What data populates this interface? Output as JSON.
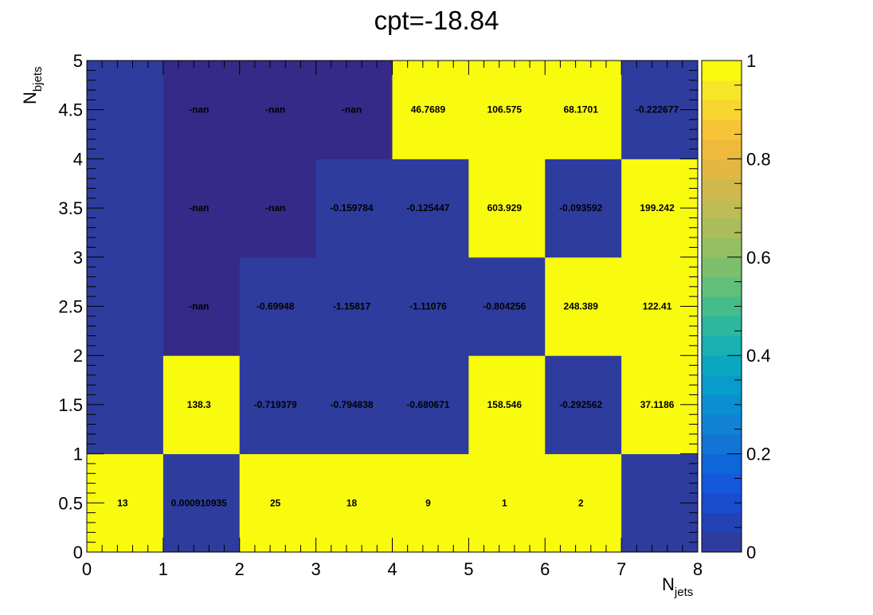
{
  "chart_data": {
    "type": "heatmap",
    "title": "cpt=-18.84",
    "xlabel_main": "N",
    "xlabel_sub": "jets",
    "ylabel_main": "N",
    "ylabel_sub": "bjets",
    "xlim": [
      0,
      8
    ],
    "ylim": [
      0,
      5
    ],
    "x_ticks": [
      "0",
      "1",
      "2",
      "3",
      "4",
      "5",
      "6",
      "7",
      "8"
    ],
    "y_ticks": [
      "0",
      "0.5",
      "1",
      "1.5",
      "2",
      "2.5",
      "3",
      "3.5",
      "4",
      "4.5",
      "5"
    ],
    "z_range": [
      0,
      1
    ],
    "colorbar_ticks": [
      "0",
      "0.2",
      "0.4",
      "0.6",
      "0.8",
      "1"
    ],
    "x_bins": [
      0,
      1,
      2,
      3,
      4,
      5,
      6,
      7,
      8
    ],
    "y_bins": [
      0,
      1,
      2,
      3,
      4,
      5
    ],
    "cells": [
      {
        "x": 0,
        "y": 0,
        "value": 13,
        "label": "13"
      },
      {
        "x": 1,
        "y": 0,
        "value": 0.000910935,
        "label": "0.000910935"
      },
      {
        "x": 2,
        "y": 0,
        "value": 25,
        "label": "25"
      },
      {
        "x": 3,
        "y": 0,
        "value": 18,
        "label": "18"
      },
      {
        "x": 4,
        "y": 0,
        "value": 9,
        "label": "9"
      },
      {
        "x": 5,
        "y": 0,
        "value": 1,
        "label": "1"
      },
      {
        "x": 6,
        "y": 0,
        "value": 2,
        "label": "2"
      },
      {
        "x": 7,
        "y": 0,
        "value": 0,
        "label": ""
      },
      {
        "x": 0,
        "y": 1,
        "value": 0,
        "label": ""
      },
      {
        "x": 1,
        "y": 1,
        "value": 138.3,
        "label": "138.3"
      },
      {
        "x": 2,
        "y": 1,
        "value": -0.719379,
        "label": "-0.719379"
      },
      {
        "x": 3,
        "y": 1,
        "value": -0.794838,
        "label": "-0.794838"
      },
      {
        "x": 4,
        "y": 1,
        "value": -0.680671,
        "label": "-0.680671"
      },
      {
        "x": 5,
        "y": 1,
        "value": 158.546,
        "label": "158.546"
      },
      {
        "x": 6,
        "y": 1,
        "value": -0.292562,
        "label": "-0.292562"
      },
      {
        "x": 7,
        "y": 1,
        "value": 37.1186,
        "label": "37.1186"
      },
      {
        "x": 0,
        "y": 2,
        "value": 0,
        "label": ""
      },
      {
        "x": 1,
        "y": 2,
        "value": null,
        "label": "-nan"
      },
      {
        "x": 2,
        "y": 2,
        "value": -0.69948,
        "label": "-0.69948"
      },
      {
        "x": 3,
        "y": 2,
        "value": -1.15817,
        "label": "-1.15817"
      },
      {
        "x": 4,
        "y": 2,
        "value": -1.11076,
        "label": "-1.11076"
      },
      {
        "x": 5,
        "y": 2,
        "value": -0.804256,
        "label": "-0.804256"
      },
      {
        "x": 6,
        "y": 2,
        "value": 248.389,
        "label": "248.389"
      },
      {
        "x": 7,
        "y": 2,
        "value": 122.41,
        "label": "122.41"
      },
      {
        "x": 0,
        "y": 3,
        "value": 0,
        "label": ""
      },
      {
        "x": 1,
        "y": 3,
        "value": null,
        "label": "-nan"
      },
      {
        "x": 2,
        "y": 3,
        "value": null,
        "label": "-nan"
      },
      {
        "x": 3,
        "y": 3,
        "value": -0.159784,
        "label": "-0.159784"
      },
      {
        "x": 4,
        "y": 3,
        "value": -0.125447,
        "label": "-0.125447"
      },
      {
        "x": 5,
        "y": 3,
        "value": 603.929,
        "label": "603.929"
      },
      {
        "x": 6,
        "y": 3,
        "value": -0.093592,
        "label": "-0.093592"
      },
      {
        "x": 7,
        "y": 3,
        "value": 199.242,
        "label": "199.242"
      },
      {
        "x": 0,
        "y": 4,
        "value": 0,
        "label": ""
      },
      {
        "x": 1,
        "y": 4,
        "value": null,
        "label": "-nan"
      },
      {
        "x": 2,
        "y": 4,
        "value": null,
        "label": "-nan"
      },
      {
        "x": 3,
        "y": 4,
        "value": null,
        "label": "-nan"
      },
      {
        "x": 4,
        "y": 4,
        "value": 46.7689,
        "label": "46.7689"
      },
      {
        "x": 5,
        "y": 4,
        "value": 106.575,
        "label": "106.575"
      },
      {
        "x": 6,
        "y": 4,
        "value": 68.1701,
        "label": "68.1701"
      },
      {
        "x": 7,
        "y": 4,
        "value": -0.222677,
        "label": "-0.222677"
      }
    ],
    "colors": {
      "nan": "#352a87",
      "palette": [
        "#2e3c9e",
        "#2541b6",
        "#1a4cd0",
        "#1458dd",
        "#0f66d9",
        "#1374d5",
        "#1282d4",
        "#0b8fd2",
        "#089ccc",
        "#0aa7c1",
        "#18b0b0",
        "#2cb89e",
        "#45bd8a",
        "#62c07a",
        "#7cbf6c",
        "#95bf62",
        "#abbd5a",
        "#bfbb55",
        "#d1b84c",
        "#e2b743",
        "#eeba3c",
        "#f7c337",
        "#f8d52f",
        "#f6e627",
        "#f9fb0e"
      ]
    }
  }
}
